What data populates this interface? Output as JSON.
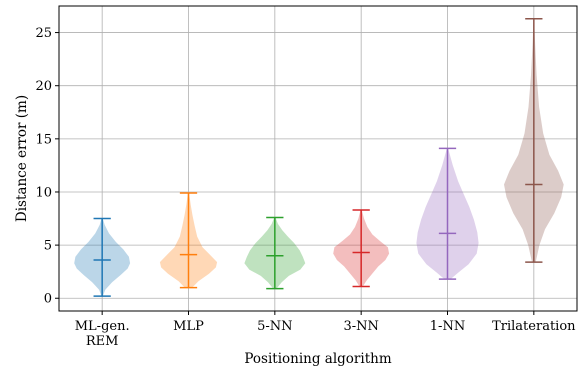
{
  "chart_data": {
    "type": "violin",
    "xlabel": "Positioning algorithm",
    "ylabel": "Distance error (m)",
    "ylim": [
      -1.2,
      27.5
    ],
    "yticks": [
      0,
      5,
      10,
      15,
      20,
      25
    ],
    "grid": true,
    "categories": [
      {
        "lines": [
          "ML-gen.",
          "REM"
        ]
      },
      {
        "lines": [
          "MLP"
        ]
      },
      {
        "lines": [
          "5-NN"
        ]
      },
      {
        "lines": [
          "3-NN"
        ]
      },
      {
        "lines": [
          "1-NN"
        ]
      },
      {
        "lines": [
          "Trilateration"
        ]
      }
    ],
    "series": [
      {
        "min": 0.2,
        "median": 3.6,
        "max": 7.5,
        "color": "#1f77b4",
        "profile": [
          [
            0.2,
            0.02
          ],
          [
            0.8,
            0.1
          ],
          [
            1.5,
            0.32
          ],
          [
            2.2,
            0.6
          ],
          [
            2.8,
            0.82
          ],
          [
            3.3,
            0.9
          ],
          [
            3.9,
            0.86
          ],
          [
            4.6,
            0.68
          ],
          [
            5.3,
            0.44
          ],
          [
            6.1,
            0.22
          ],
          [
            6.9,
            0.08
          ],
          [
            7.5,
            0.02
          ]
        ]
      },
      {
        "min": 1.0,
        "median": 4.1,
        "max": 9.9,
        "color": "#ff7f0e",
        "profile": [
          [
            1.0,
            0.12
          ],
          [
            1.6,
            0.32
          ],
          [
            2.3,
            0.66
          ],
          [
            2.9,
            0.88
          ],
          [
            3.4,
            0.92
          ],
          [
            4.0,
            0.72
          ],
          [
            4.8,
            0.45
          ],
          [
            5.8,
            0.28
          ],
          [
            6.8,
            0.2
          ],
          [
            7.8,
            0.13
          ],
          [
            8.8,
            0.07
          ],
          [
            9.9,
            0.02
          ]
        ]
      },
      {
        "min": 0.9,
        "median": 4.0,
        "max": 7.6,
        "color": "#2ca02c",
        "profile": [
          [
            0.9,
            0.05
          ],
          [
            1.5,
            0.22
          ],
          [
            2.1,
            0.45
          ],
          [
            2.7,
            0.82
          ],
          [
            3.3,
            0.98
          ],
          [
            3.9,
            0.9
          ],
          [
            4.5,
            0.8
          ],
          [
            5.2,
            0.62
          ],
          [
            5.8,
            0.42
          ],
          [
            6.4,
            0.24
          ],
          [
            7.0,
            0.1
          ],
          [
            7.6,
            0.02
          ]
        ]
      },
      {
        "min": 1.1,
        "median": 4.3,
        "max": 8.3,
        "color": "#d62728",
        "profile": [
          [
            1.1,
            0.05
          ],
          [
            1.7,
            0.18
          ],
          [
            2.4,
            0.38
          ],
          [
            3.0,
            0.55
          ],
          [
            3.6,
            0.78
          ],
          [
            4.2,
            0.9
          ],
          [
            4.8,
            0.86
          ],
          [
            5.4,
            0.6
          ],
          [
            6.0,
            0.36
          ],
          [
            6.7,
            0.2
          ],
          [
            7.5,
            0.09
          ],
          [
            8.3,
            0.02
          ]
        ]
      },
      {
        "min": 1.8,
        "median": 6.1,
        "max": 14.1,
        "color": "#9467bd",
        "profile": [
          [
            1.8,
            0.1
          ],
          [
            2.4,
            0.34
          ],
          [
            3.2,
            0.68
          ],
          [
            4.2,
            0.94
          ],
          [
            5.2,
            1.0
          ],
          [
            6.2,
            0.96
          ],
          [
            7.4,
            0.85
          ],
          [
            8.6,
            0.7
          ],
          [
            9.8,
            0.52
          ],
          [
            11.0,
            0.34
          ],
          [
            12.5,
            0.17
          ],
          [
            14.1,
            0.02
          ]
        ]
      },
      {
        "min": 3.4,
        "median": 10.7,
        "max": 26.3,
        "color": "#8c564b",
        "profile": [
          [
            3.4,
            0.06
          ],
          [
            5.0,
            0.18
          ],
          [
            6.5,
            0.36
          ],
          [
            8.0,
            0.66
          ],
          [
            9.5,
            0.88
          ],
          [
            10.7,
            0.96
          ],
          [
            12.0,
            0.78
          ],
          [
            13.5,
            0.5
          ],
          [
            15.5,
            0.3
          ],
          [
            18.0,
            0.17
          ],
          [
            21.0,
            0.09
          ],
          [
            24.0,
            0.04
          ],
          [
            26.3,
            0.01
          ]
        ]
      }
    ]
  }
}
